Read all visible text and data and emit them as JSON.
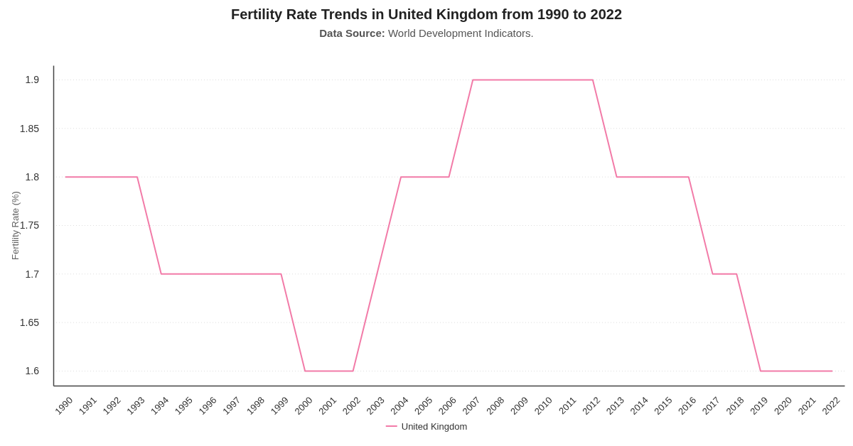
{
  "chart_data": {
    "type": "line",
    "title": "Fertility Rate Trends in United Kingdom from 1990 to 2022",
    "subtitle": "Data Source: World Development Indicators.",
    "ylabel": "Fertility Rate (%)",
    "categories": [
      "1990",
      "1991",
      "1992",
      "1993",
      "1994",
      "1995",
      "1996",
      "1997",
      "1998",
      "1999",
      "2000",
      "2001",
      "2002",
      "2003",
      "2004",
      "2005",
      "2006",
      "2007",
      "2008",
      "2009",
      "2010",
      "2011",
      "2012",
      "2013",
      "2014",
      "2015",
      "2016",
      "2017",
      "2018",
      "2019",
      "2020",
      "2021",
      "2022"
    ],
    "series": [
      {
        "name": "United Kingdom",
        "color": "#f27ba8",
        "values": [
          1.8,
          1.8,
          1.8,
          1.8,
          1.7,
          1.7,
          1.7,
          1.7,
          1.7,
          1.7,
          1.6,
          1.6,
          1.6,
          1.7,
          1.8,
          1.8,
          1.8,
          1.9,
          1.9,
          1.9,
          1.9,
          1.9,
          1.9,
          1.8,
          1.8,
          1.8,
          1.8,
          1.7,
          1.7,
          1.6,
          1.6,
          1.6,
          1.6
        ]
      }
    ],
    "ylim": [
      1.585,
      1.915
    ],
    "yticks": [
      1.6,
      1.65,
      1.7,
      1.75,
      1.8,
      1.85,
      1.9
    ],
    "grid": "y",
    "legend": "bottom",
    "marker": "none",
    "line_style": "solid"
  }
}
